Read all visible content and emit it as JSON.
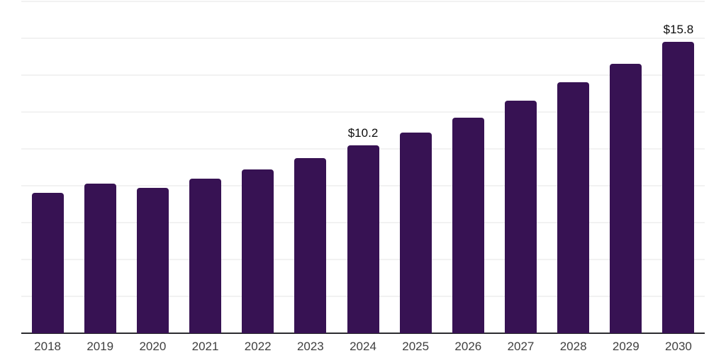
{
  "chart_data": {
    "type": "bar",
    "title": "",
    "xlabel": "",
    "ylabel": "",
    "categories": [
      "2018",
      "2019",
      "2020",
      "2021",
      "2022",
      "2023",
      "2024",
      "2025",
      "2026",
      "2027",
      "2028",
      "2029",
      "2030"
    ],
    "values": [
      7.6,
      8.1,
      7.9,
      8.4,
      8.9,
      9.5,
      10.2,
      10.9,
      11.7,
      12.6,
      13.6,
      14.6,
      15.8
    ],
    "data_labels": [
      {
        "category": "2024",
        "text": "$10.2"
      },
      {
        "category": "2030",
        "text": "$15.8"
      }
    ],
    "ylim": [
      0,
      18
    ],
    "grid_interval": 2,
    "grid": "horizontal-only",
    "y_tick_labels_visible": false,
    "legend": "none",
    "colors": {
      "bar": "#371253",
      "axis_line": "#2c2c30",
      "gridline": "#f2f2f2",
      "x_tick_label": "#3f3f3f",
      "data_label": "#0d0d0d",
      "background": "#ffffff"
    }
  }
}
